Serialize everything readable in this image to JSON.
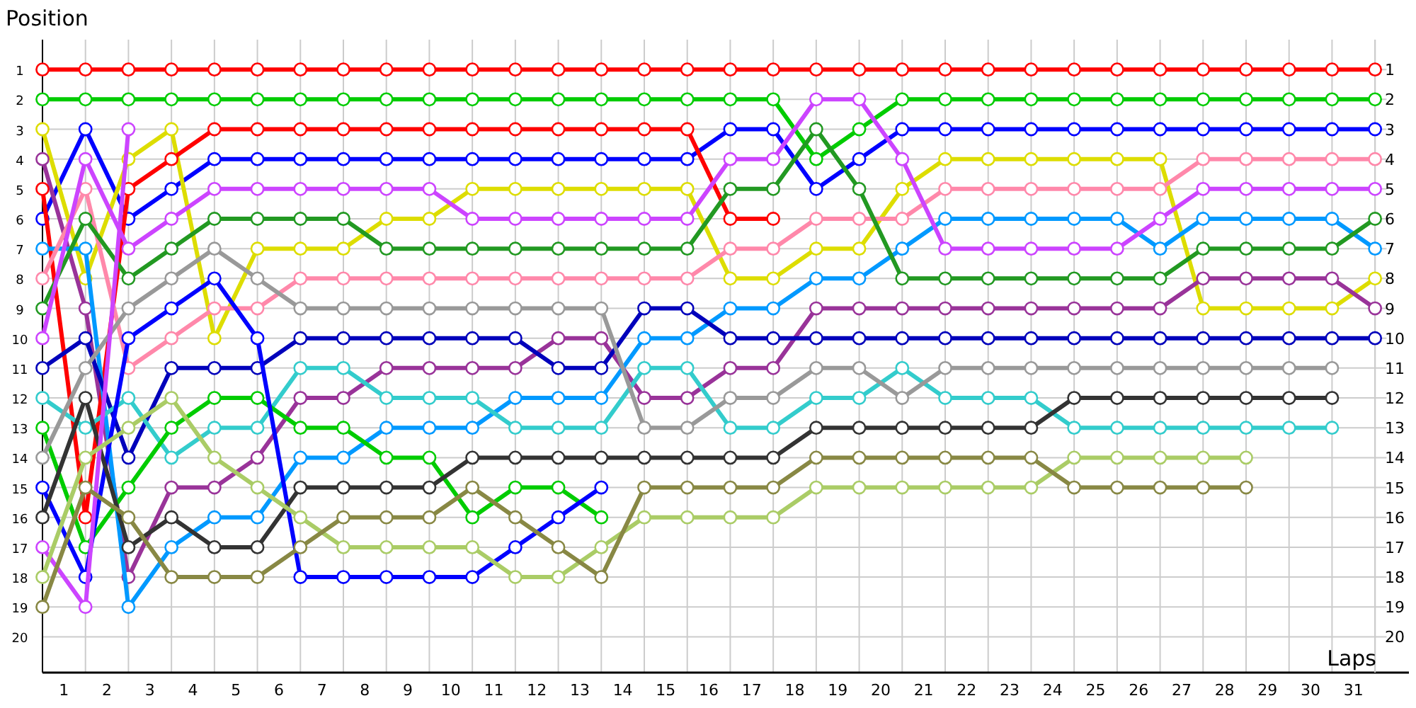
{
  "chart_data": {
    "type": "line",
    "xlabel": "Laps",
    "ylabel": "Position",
    "x": [
      0,
      1,
      2,
      3,
      4,
      5,
      6,
      7,
      8,
      9,
      10,
      11,
      12,
      13,
      14,
      15,
      16,
      17,
      18,
      19,
      20,
      21,
      22,
      23,
      24,
      25,
      26,
      27,
      28,
      29,
      30,
      31
    ],
    "xlim": [
      0,
      31.4
    ],
    "xticks": [
      {
        "value": 0,
        "label": null
      },
      {
        "value": 0.5,
        "label": "1"
      },
      {
        "value": 1,
        "label": null
      },
      {
        "value": 1.5,
        "label": "2"
      },
      {
        "value": 2,
        "label": null
      },
      {
        "value": 2.5,
        "label": "3"
      },
      {
        "value": 3,
        "label": null
      },
      {
        "value": 3.5,
        "label": "4"
      },
      {
        "value": 4,
        "label": null
      },
      {
        "value": 4.5,
        "label": "5"
      },
      {
        "value": 5,
        "label": null
      },
      {
        "value": 5.5,
        "label": "6"
      },
      {
        "value": 6,
        "label": null
      },
      {
        "value": 6.5,
        "label": "7"
      },
      {
        "value": 7,
        "label": null
      },
      {
        "value": 7.5,
        "label": "8"
      },
      {
        "value": 8,
        "label": null
      },
      {
        "value": 8.5,
        "label": "9"
      },
      {
        "value": 9,
        "label": null
      },
      {
        "value": 9.5,
        "label": "10"
      },
      {
        "value": 10,
        "label": null
      },
      {
        "value": 10.5,
        "label": "11"
      },
      {
        "value": 11,
        "label": null
      },
      {
        "value": 11.5,
        "label": "12"
      },
      {
        "value": 12,
        "label": null
      },
      {
        "value": 12.5,
        "label": "13"
      },
      {
        "value": 13,
        "label": null
      },
      {
        "value": 13.5,
        "label": "14"
      },
      {
        "value": 14,
        "label": null
      },
      {
        "value": 14.5,
        "label": "15"
      },
      {
        "value": 15,
        "label": null
      },
      {
        "value": 15.5,
        "label": "16"
      },
      {
        "value": 16,
        "label": null
      },
      {
        "value": 16.5,
        "label": "17"
      },
      {
        "value": 17,
        "label": null
      },
      {
        "value": 17.5,
        "label": "18"
      },
      {
        "value": 18,
        "label": null
      },
      {
        "value": 18.5,
        "label": "19"
      },
      {
        "value": 19,
        "label": null
      },
      {
        "value": 19.5,
        "label": "20"
      },
      {
        "value": 20,
        "label": null
      },
      {
        "value": 20.5,
        "label": "21"
      },
      {
        "value": 21,
        "label": null
      },
      {
        "value": 21.5,
        "label": "22"
      },
      {
        "value": 22,
        "label": null
      },
      {
        "value": 22.5,
        "label": "23"
      },
      {
        "value": 23,
        "label": null
      },
      {
        "value": 23.5,
        "label": "24"
      },
      {
        "value": 24,
        "label": null
      },
      {
        "value": 24.5,
        "label": "25"
      },
      {
        "value": 25,
        "label": null
      },
      {
        "value": 25.5,
        "label": "26"
      },
      {
        "value": 26,
        "label": null
      },
      {
        "value": 26.5,
        "label": "27"
      },
      {
        "value": 27,
        "label": null
      },
      {
        "value": 27.5,
        "label": "28"
      },
      {
        "value": 28,
        "label": null
      },
      {
        "value": 28.5,
        "label": "29"
      },
      {
        "value": 29,
        "label": null
      },
      {
        "value": 29.5,
        "label": "30"
      },
      {
        "value": 30,
        "label": null
      },
      {
        "value": 30.5,
        "label": "31"
      },
      {
        "value": 31,
        "label": null
      }
    ],
    "ylim": [
      21.2,
      0
    ],
    "yticks": [
      1,
      2,
      3,
      4,
      5,
      6,
      7,
      8,
      9,
      10,
      11,
      12,
      13,
      14,
      15,
      16,
      17,
      18,
      19,
      20
    ],
    "y2lim": [
      21.2,
      0
    ],
    "y2ticks": [
      1,
      2,
      3,
      4,
      5,
      6,
      7,
      8,
      9,
      10,
      11,
      12,
      13,
      14,
      15,
      16,
      17,
      18,
      19,
      20
    ],
    "grid": true,
    "marker": "circle",
    "series": [
      {
        "color": "#ff0000",
        "values": [
          1,
          1,
          1,
          1,
          1,
          1,
          1,
          1,
          1,
          1,
          1,
          1,
          1,
          1,
          1,
          1,
          1,
          1,
          1,
          1,
          1,
          1,
          1,
          1,
          1,
          1,
          1,
          1,
          1,
          1,
          1,
          1
        ]
      },
      {
        "color": "#00cc00",
        "values": [
          2,
          2,
          2,
          2,
          2,
          2,
          2,
          2,
          2,
          2,
          2,
          2,
          2,
          2,
          2,
          2,
          2,
          2,
          4,
          3,
          2,
          2,
          2,
          2,
          2,
          2,
          2,
          2,
          2,
          2,
          2,
          2
        ]
      },
      {
        "color": "#0000ff",
        "values": [
          6,
          3,
          6,
          5,
          4,
          4,
          4,
          4,
          4,
          4,
          4,
          4,
          4,
          4,
          4,
          4,
          3,
          3,
          5,
          4,
          3,
          3,
          3,
          3,
          3,
          3,
          3,
          3,
          3,
          3,
          3,
          3
        ]
      },
      {
        "color": "#dddd00",
        "values": [
          3,
          8,
          4,
          3,
          10,
          7,
          7,
          7,
          6,
          6,
          5,
          5,
          5,
          5,
          5,
          5,
          8,
          8,
          7,
          7,
          5,
          4,
          4,
          4,
          4,
          4,
          4,
          9,
          9,
          9,
          9,
          8
        ]
      },
      {
        "color": "#993399",
        "values": [
          4,
          9,
          18,
          15,
          15,
          14,
          12,
          12,
          11,
          11,
          11,
          11,
          10,
          10,
          12,
          12,
          11,
          11,
          9,
          9,
          9,
          9,
          9,
          9,
          9,
          9,
          9,
          8,
          8,
          8,
          8,
          9
        ]
      },
      {
        "color": "#ff0000",
        "values": [
          5,
          16,
          5,
          4,
          3,
          3,
          3,
          3,
          3,
          3,
          3,
          3,
          3,
          3,
          3,
          3,
          6,
          6,
          null,
          null,
          null,
          null,
          null,
          null,
          null,
          null,
          null,
          null,
          null,
          null,
          null,
          null
        ]
      },
      {
        "color": "#0099ff",
        "values": [
          7,
          7,
          19,
          17,
          16,
          16,
          14,
          14,
          13,
          13,
          13,
          12,
          12,
          12,
          10,
          10,
          9,
          9,
          8,
          8,
          7,
          6,
          6,
          6,
          6,
          6,
          7,
          6,
          6,
          6,
          6,
          7
        ]
      },
      {
        "color": "#ff88aa",
        "values": [
          8,
          5,
          11,
          10,
          9,
          9,
          8,
          8,
          8,
          8,
          8,
          8,
          8,
          8,
          8,
          8,
          7,
          7,
          6,
          6,
          6,
          5,
          5,
          5,
          5,
          5,
          5,
          4,
          4,
          4,
          4,
          4
        ]
      },
      {
        "color": "#229922",
        "values": [
          9,
          6,
          8,
          7,
          6,
          6,
          6,
          6,
          7,
          7,
          7,
          7,
          7,
          7,
          7,
          7,
          5,
          5,
          3,
          5,
          8,
          8,
          8,
          8,
          8,
          8,
          8,
          7,
          7,
          7,
          7,
          6
        ]
      },
      {
        "color": "#cc44ff",
        "values": [
          10,
          4,
          7,
          6,
          5,
          5,
          5,
          5,
          5,
          5,
          6,
          6,
          6,
          6,
          6,
          6,
          4,
          4,
          2,
          2,
          4,
          7,
          7,
          7,
          7,
          7,
          6,
          5,
          5,
          5,
          5,
          5
        ]
      },
      {
        "color": "#0000bb",
        "values": [
          11,
          10,
          14,
          11,
          11,
          11,
          10,
          10,
          10,
          10,
          10,
          10,
          11,
          11,
          9,
          9,
          10,
          10,
          10,
          10,
          10,
          10,
          10,
          10,
          10,
          10,
          10,
          10,
          10,
          10,
          10,
          10
        ]
      },
      {
        "color": "#33cccc",
        "values": [
          12,
          13,
          12,
          14,
          13,
          13,
          11,
          11,
          12,
          12,
          12,
          13,
          13,
          13,
          11,
          11,
          13,
          13,
          12,
          12,
          11,
          12,
          12,
          12,
          13,
          13,
          13,
          13,
          13,
          13,
          13,
          null
        ]
      },
      {
        "color": "#00cc00",
        "values": [
          13,
          17,
          15,
          13,
          12,
          12,
          13,
          13,
          14,
          14,
          16,
          15,
          15,
          16,
          null,
          null,
          null,
          null,
          null,
          null,
          null,
          null,
          null,
          null,
          null,
          null,
          null,
          null,
          null,
          null,
          null,
          null
        ]
      },
      {
        "color": "#999999",
        "values": [
          14,
          11,
          9,
          8,
          7,
          8,
          9,
          9,
          9,
          9,
          9,
          9,
          9,
          9,
          13,
          13,
          12,
          12,
          11,
          11,
          12,
          11,
          11,
          11,
          11,
          11,
          11,
          11,
          11,
          11,
          11,
          null
        ]
      },
      {
        "color": "#0000ff",
        "values": [
          15,
          18,
          10,
          9,
          8,
          10,
          18,
          18,
          18,
          18,
          18,
          17,
          16,
          15,
          null,
          null,
          null,
          null,
          null,
          null,
          null,
          null,
          null,
          null,
          null,
          null,
          null,
          null,
          null,
          null,
          null,
          null
        ]
      },
      {
        "color": "#333333",
        "values": [
          16,
          12,
          17,
          16,
          17,
          17,
          15,
          15,
          15,
          15,
          14,
          14,
          14,
          14,
          14,
          14,
          14,
          14,
          13,
          13,
          13,
          13,
          13,
          13,
          12,
          12,
          12,
          12,
          12,
          12,
          12,
          null
        ]
      },
      {
        "color": "#cc44ff",
        "values": [
          17,
          19,
          3,
          null,
          null,
          null,
          null,
          null,
          null,
          null,
          null,
          null,
          null,
          null,
          null,
          null,
          null,
          null,
          null,
          null,
          null,
          null,
          null,
          null,
          null,
          null,
          null,
          null,
          null,
          null,
          null,
          null
        ]
      },
      {
        "color": "#aacc66",
        "values": [
          18,
          14,
          13,
          12,
          14,
          15,
          16,
          17,
          17,
          17,
          17,
          18,
          18,
          17,
          16,
          16,
          16,
          16,
          15,
          15,
          15,
          15,
          15,
          15,
          14,
          14,
          14,
          14,
          14,
          null,
          null,
          null
        ]
      },
      {
        "color": "#888844",
        "values": [
          19,
          15,
          16,
          18,
          18,
          18,
          17,
          16,
          16,
          16,
          15,
          16,
          17,
          18,
          15,
          15,
          15,
          15,
          14,
          14,
          14,
          14,
          14,
          14,
          15,
          15,
          15,
          15,
          15,
          null,
          null,
          null
        ]
      }
    ]
  }
}
